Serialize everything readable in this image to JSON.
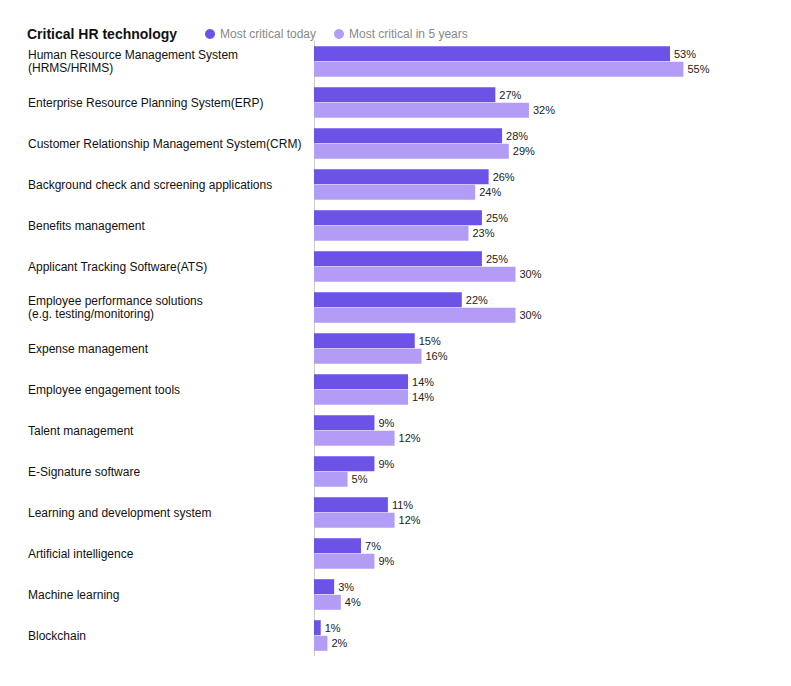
{
  "chart_data": {
    "type": "bar",
    "title": "Critical HR technology",
    "orientation": "horizontal",
    "legend": "top",
    "grid": false,
    "tick_labels": "y",
    "data_labels": true,
    "categories": [
      "Human Resource Management System\n(HRMS/HRIMS)",
      "Enterprise Resource Planning System(ERP)",
      "Customer Relationship Management System(CRM)",
      "Background check and screening applications",
      "Benefits management",
      "Applicant Tracking Software(ATS)",
      "Employee performance solutions\n(e.g. testing/monitoring)",
      "Expense management",
      "Employee engagement tools",
      "Talent management",
      "E-Signature software",
      "Learning and development system",
      "Artificial intelligence",
      "Machine learning",
      "Blockchain"
    ],
    "xlim": [
      0,
      60
    ],
    "series": [
      {
        "name": "Most critical today",
        "color": "#6c52e6",
        "values": [
          53,
          27,
          28,
          26,
          25,
          25,
          22,
          15,
          14,
          9,
          9,
          11,
          7,
          3,
          1
        ],
        "value_labels": [
          "53%",
          "27%",
          "28%",
          "26%",
          "25%",
          "25%",
          "22%",
          "15%",
          "14%",
          "9%",
          "9%",
          "11%",
          "7%",
          "3%",
          "1%"
        ]
      },
      {
        "name": "Most critical in 5 years",
        "color": "#b39cf6",
        "values": [
          55,
          32,
          29,
          24,
          23,
          30,
          30,
          16,
          14,
          12,
          5,
          12,
          9,
          4,
          2
        ],
        "value_labels": [
          "55%",
          "32%",
          "29%",
          "24%",
          "23%",
          "30%",
          "30%",
          "16%",
          "14%",
          "12%",
          "5%",
          "12%",
          "9%",
          "4%",
          "2%"
        ]
      }
    ]
  }
}
